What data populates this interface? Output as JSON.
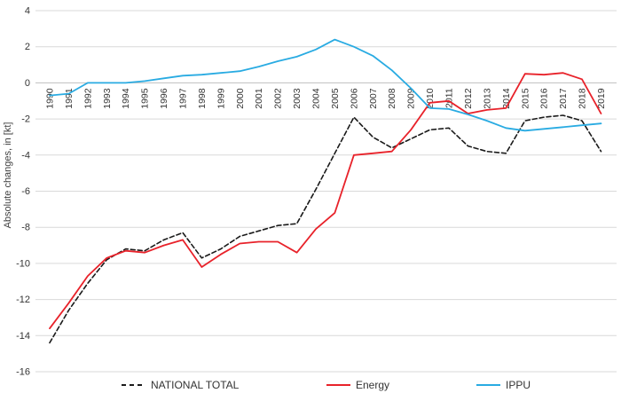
{
  "chart_data": {
    "type": "line",
    "title": "",
    "xlabel": "",
    "ylabel": "Absolute changes, in [kt]",
    "ylim": [
      -16,
      4
    ],
    "yticks": [
      4,
      2,
      0,
      -2,
      -4,
      -6,
      -8,
      -10,
      -12,
      -14,
      -16
    ],
    "grid": "horizontal",
    "legend_position": "bottom",
    "categories": [
      "1990",
      "1991",
      "1992",
      "1993",
      "1994",
      "1995",
      "1996",
      "1997",
      "1998",
      "1999",
      "2000",
      "2001",
      "2002",
      "2003",
      "2004",
      "2005",
      "2006",
      "2007",
      "2008",
      "2009",
      "2010",
      "2011",
      "2012",
      "2013",
      "2014",
      "2015",
      "2016",
      "2017",
      "2018",
      "2019"
    ],
    "series": [
      {
        "name": "NATIONAL TOTAL",
        "color": "#1a1a1a",
        "dash": "dashed",
        "values": [
          -14.4,
          -12.6,
          -11.1,
          -9.8,
          -9.2,
          -9.3,
          -8.7,
          -8.3,
          -9.7,
          -9.2,
          -8.5,
          -8.2,
          -7.9,
          -7.8,
          -5.9,
          -3.9,
          -1.9,
          -3.0,
          -3.6,
          -3.1,
          -2.6,
          -2.5,
          -3.5,
          -3.8,
          -3.9,
          -2.1,
          -1.9,
          -1.8,
          -2.1,
          -3.8
        ]
      },
      {
        "name": "Energy",
        "color": "#e8222a",
        "dash": "solid",
        "values": [
          -13.6,
          -12.2,
          -10.7,
          -9.7,
          -9.3,
          -9.4,
          -9.0,
          -8.7,
          -10.2,
          -9.5,
          -8.9,
          -8.8,
          -8.8,
          -9.4,
          -8.1,
          -7.2,
          -4.0,
          -3.9,
          -3.8,
          -2.6,
          -1.1,
          -1.0,
          -1.7,
          -1.5,
          -1.4,
          0.5,
          0.45,
          0.55,
          0.2,
          -1.7
        ]
      },
      {
        "name": "IPPU",
        "color": "#29abe2",
        "dash": "solid",
        "values": [
          -0.7,
          -0.6,
          0.0,
          0.0,
          0.0,
          0.1,
          0.25,
          0.4,
          0.45,
          0.55,
          0.65,
          0.9,
          1.2,
          1.45,
          1.85,
          2.4,
          2.0,
          1.5,
          0.7,
          -0.3,
          -1.4,
          -1.45,
          -1.75,
          -2.1,
          -2.5,
          -2.65,
          -2.55,
          -2.45,
          -2.35,
          -2.25
        ]
      }
    ],
    "colors": {
      "gridline": "#d9d9d9",
      "zero_axis": "#bfbfbf",
      "tick_text": "#333333",
      "axis_title_text": "#404040",
      "legend_text": "#333333",
      "background": "#ffffff"
    }
  }
}
